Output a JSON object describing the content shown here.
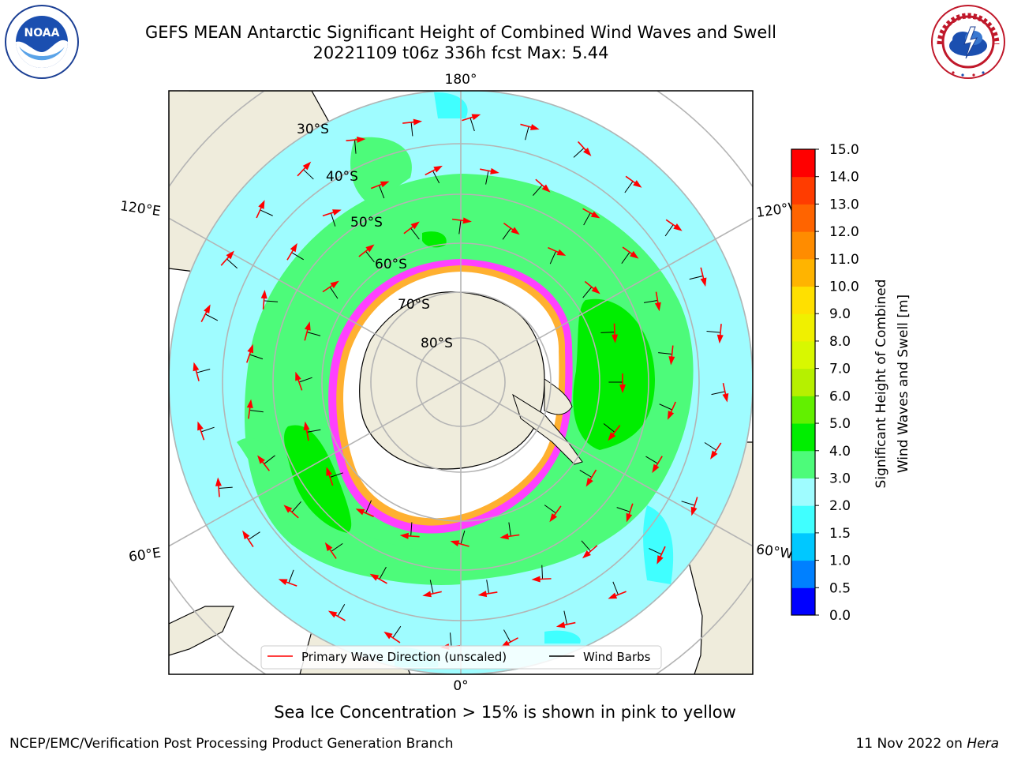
{
  "header": {
    "title_line1": "GEFS MEAN Antarctic Significant Height of Combined Wind Waves and Swell",
    "title_line2": "20221109 t06z 336h fcst   Max: 5.44"
  },
  "map": {
    "projection": "south-polar-stereographic",
    "lon_labels": {
      "top": "180°",
      "bottom": "0°",
      "upper_left": "120°E",
      "upper_right": "120°W",
      "lower_left": "60°E",
      "lower_right": "60°W"
    },
    "lat_labels": [
      "30°S",
      "40°S",
      "50°S",
      "60°S",
      "70°S",
      "80°S"
    ],
    "colors": {
      "land": "#efecdc",
      "ice_pink": "#ff40ff",
      "ice_orange": "#ffb030",
      "wave_1_5_2": "#40ffff",
      "wave_2_3": "#9ffcff",
      "wave_3_4": "#4dfb7a",
      "wave_4_5": "#00ee00",
      "arrow": "#ff0000"
    }
  },
  "legend": {
    "items": [
      {
        "label": "Primary Wave Direction (unscaled)",
        "color": "#ff0000"
      },
      {
        "label": "Wind Barbs",
        "color": "#000000"
      }
    ]
  },
  "colorbar": {
    "label_line1": "Significant Height of Combined",
    "label_line2": "Wind Waves and Swell [m]",
    "ticks": [
      "0.0",
      "0.5",
      "1.0",
      "1.5",
      "2.0",
      "3.0",
      "4.0",
      "5.0",
      "6.0",
      "7.0",
      "8.0",
      "9.0",
      "10.0",
      "11.0",
      "12.0",
      "13.0",
      "14.0",
      "15.0"
    ],
    "colors": [
      "#0000ff",
      "#0080ff",
      "#00c8ff",
      "#40ffff",
      "#9ffcff",
      "#4dfb7a",
      "#00ee00",
      "#62f000",
      "#b6f000",
      "#d8f800",
      "#f0f000",
      "#ffe000",
      "#ffb400",
      "#ff8c00",
      "#ff6400",
      "#ff3c00",
      "#ff0000"
    ]
  },
  "footer": {
    "note": "Sea Ice Concentration > 15% is shown in pink to yellow",
    "credit": "NCEP/EMC/Verification Post Processing Product Generation Branch",
    "date": "11 Nov 2022 on",
    "host": "Hera"
  },
  "logos": {
    "left_text": "NOAA",
    "right_text": "NATIONAL WEATHER SERVICE"
  }
}
